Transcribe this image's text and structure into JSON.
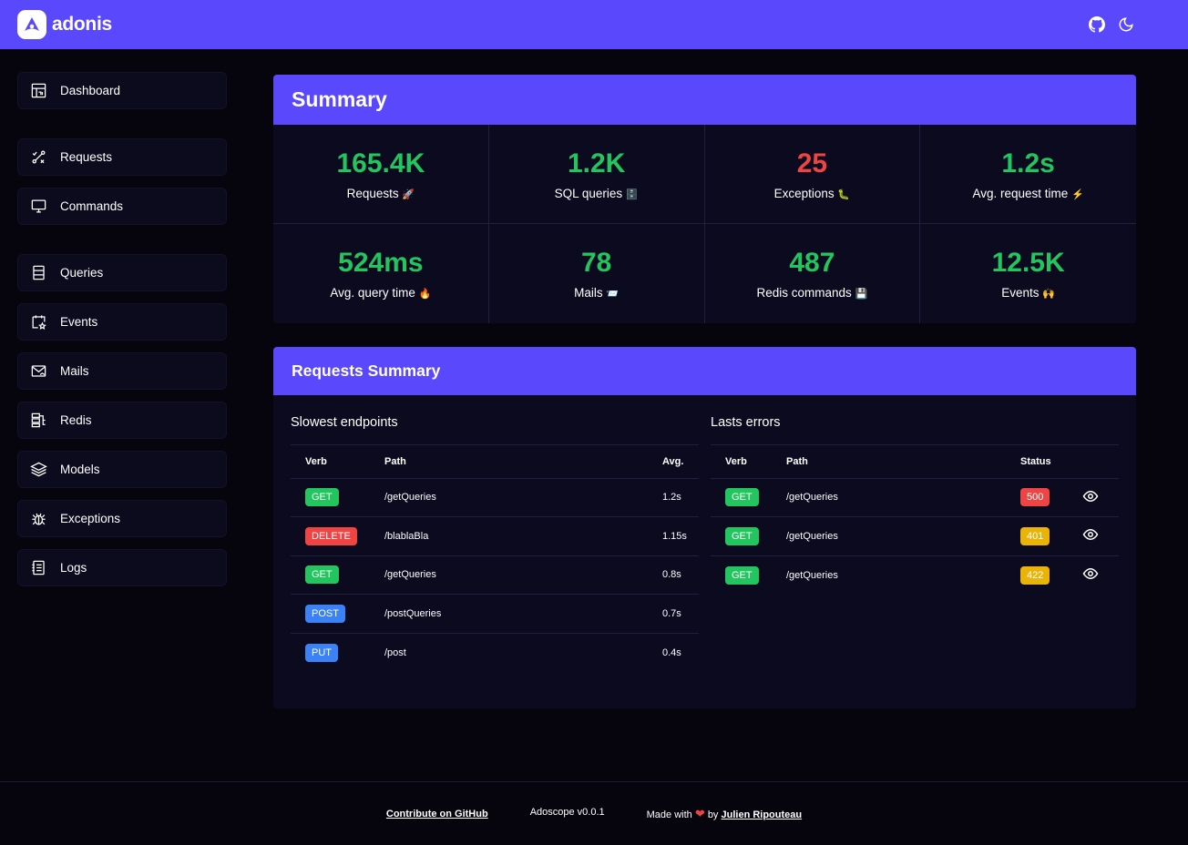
{
  "brand": {
    "name": "adonis"
  },
  "sidebar": {
    "items": [
      {
        "label": "Dashboard",
        "icon": "dashboard-icon"
      },
      {
        "label": "Requests",
        "icon": "requests-icon"
      },
      {
        "label": "Commands",
        "icon": "monitor-icon"
      },
      {
        "label": "Queries",
        "icon": "database-icon"
      },
      {
        "label": "Events",
        "icon": "calendar-star-icon"
      },
      {
        "label": "Mails",
        "icon": "mail-icon"
      },
      {
        "label": "Redis",
        "icon": "redis-icon"
      },
      {
        "label": "Models",
        "icon": "layers-icon"
      },
      {
        "label": "Exceptions",
        "icon": "bug-icon"
      },
      {
        "label": "Logs",
        "icon": "logs-icon"
      }
    ]
  },
  "summary": {
    "title": "Summary",
    "stats": [
      {
        "value": "165.4K",
        "label": "Requests",
        "emoji": "🚀"
      },
      {
        "value": "1.2K",
        "label": "SQL queries",
        "emoji": "🗄️"
      },
      {
        "value": "25",
        "label": "Exceptions",
        "emoji": "🐛"
      },
      {
        "value": "1.2s",
        "label": "Avg. request time",
        "emoji": "⚡"
      },
      {
        "value": "524ms",
        "label": "Avg. query time",
        "emoji": "🔥"
      },
      {
        "value": "78",
        "label": "Mails",
        "emoji": "📨"
      },
      {
        "value": "487",
        "label": "Redis commands",
        "emoji": "💾"
      },
      {
        "value": "12.5K",
        "label": "Events",
        "emoji": "🙌"
      }
    ]
  },
  "requests_summary": {
    "title": "Requests Summary",
    "slowest": {
      "title": "Slowest endpoints",
      "headers": [
        "Verb",
        "Path",
        "Avg."
      ],
      "rows": [
        {
          "verb": "GET",
          "path": "/getQueries",
          "avg": "1.2s"
        },
        {
          "verb": "DELETE",
          "path": "/blablaBla",
          "avg": "1.15s"
        },
        {
          "verb": "GET",
          "path": "/getQueries",
          "avg": "0.8s"
        },
        {
          "verb": "POST",
          "path": "/postQueries",
          "avg": "0.7s"
        },
        {
          "verb": "PUT",
          "path": "/post",
          "avg": "0.4s"
        }
      ]
    },
    "errors": {
      "title": "Lasts errors",
      "headers": [
        "Verb",
        "Path",
        "Status"
      ],
      "rows": [
        {
          "verb": "GET",
          "path": "/getQueries",
          "status": "500"
        },
        {
          "verb": "GET",
          "path": "/getQueries",
          "status": "401"
        },
        {
          "verb": "GET",
          "path": "/getQueries",
          "status": "422"
        }
      ]
    }
  },
  "colors": {
    "GET": "#22c55e",
    "DELETE": "#ef4444",
    "POST": "#3b82f6",
    "PUT": "#3b82f6",
    "500": "#ef4444",
    "401": "#eab308",
    "422": "#eab308"
  },
  "footer": {
    "github": "Contribute on GitHub",
    "version": "Adoscope v0.0.1",
    "made_with": "Made with",
    "heart": "❤",
    "by": "by",
    "author": "Julien Ripouteau"
  }
}
